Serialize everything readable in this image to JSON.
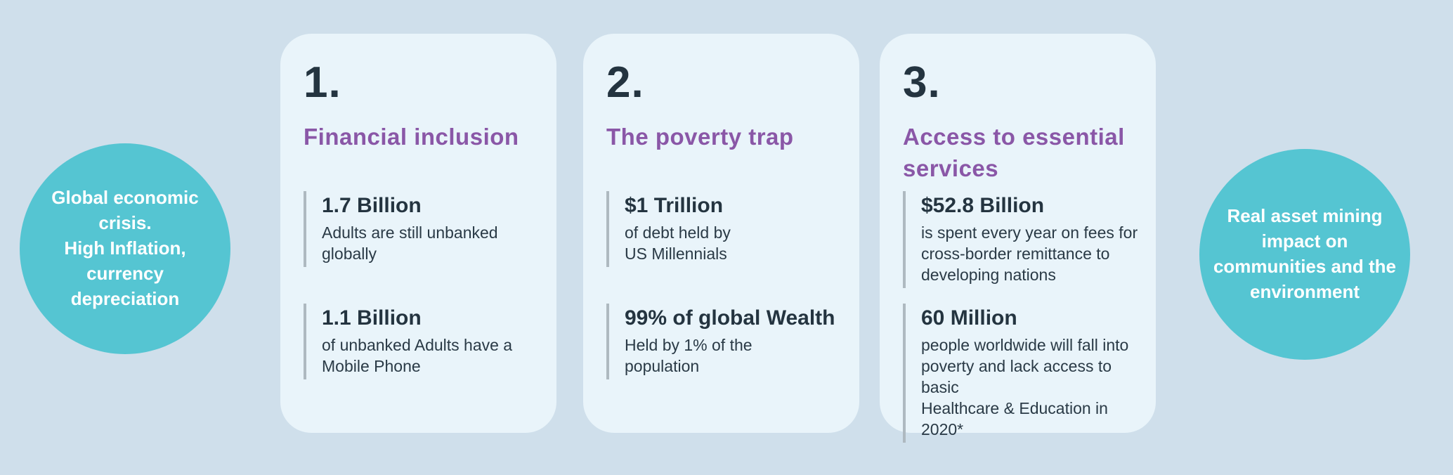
{
  "colors": {
    "background": "#cfdfeb",
    "card_background": "#e9f4fa",
    "circle_teal": "#55c5d2",
    "heading_purple": "#8a57a7",
    "text_dark_navy": "#243440",
    "stat_bar_gray": "#aeb9c0",
    "circle_text_white": "#ffffff"
  },
  "left_circle": {
    "text": "Global economic\ncrisis.\nHigh Inflation,\ncurrency\ndepreciation"
  },
  "right_circle": {
    "text": "Real asset  mining\nimpact on\ncommunities and the\nenvironment"
  },
  "cards": [
    {
      "number": "1.",
      "heading": "Financial inclusion",
      "stats": [
        {
          "value": "1.7 Billion",
          "desc": "Adults are still unbanked\nglobally"
        },
        {
          "value": "1.1 Billion",
          "desc": "of unbanked Adults have a\nMobile Phone"
        }
      ]
    },
    {
      "number": "2.",
      "heading": "The poverty trap",
      "stats": [
        {
          "value": "$1 Trillion",
          "desc": "of debt held by\nUS Millennials"
        },
        {
          "value": "99% of global Wealth",
          "desc": "Held by 1% of the\npopulation"
        }
      ]
    },
    {
      "number": "3.",
      "heading": "Access to essential\nservices",
      "stats": [
        {
          "value": "$52.8 Billion",
          "desc": "is spent every year on fees for\ncross-border remittance to\ndeveloping nations"
        },
        {
          "value": "60 Million",
          "desc": "people worldwide will fall into\npoverty and lack access to basic\nHealthcare & Education in 2020*"
        }
      ]
    }
  ]
}
